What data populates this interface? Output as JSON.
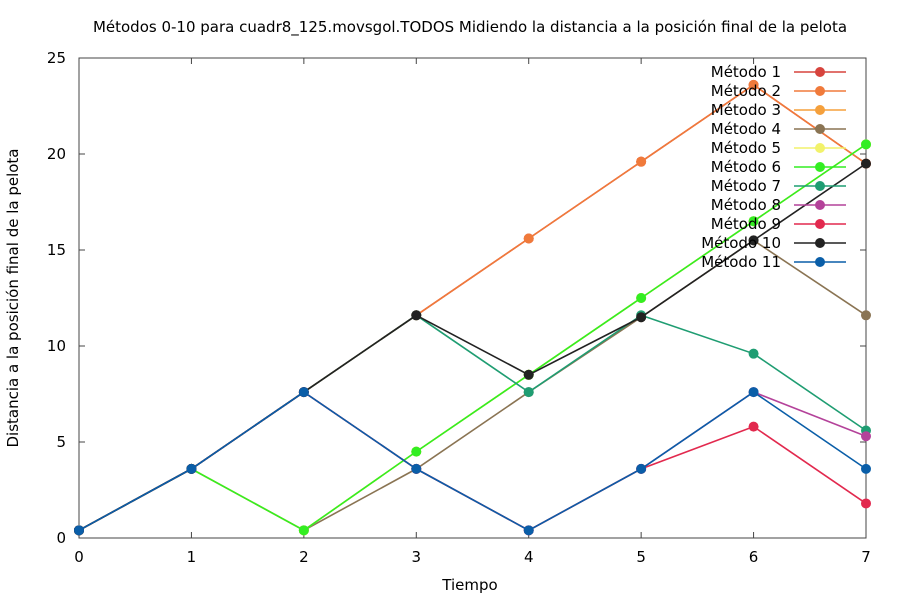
{
  "chart_data": {
    "type": "line",
    "title": "Métodos 0-10 para cuadr8_125.movsgol.TODOS Midiendo la distancia a la posición final de la pelota",
    "xlabel": "Tiempo",
    "ylabel": "Distancia a la posición final de la pelota",
    "xlim": [
      0,
      7
    ],
    "ylim": [
      0,
      25
    ],
    "xticks": [
      0,
      1,
      2,
      3,
      4,
      5,
      6,
      7
    ],
    "yticks": [
      0,
      5,
      10,
      15,
      20,
      25
    ],
    "grid": false,
    "legend_position": "top-right",
    "x": [
      0,
      1,
      2,
      3,
      4,
      5,
      6,
      7
    ],
    "series": [
      {
        "name": "Método 1",
        "color": "#d7443d",
        "values": [
          0.4,
          3.6,
          7.6,
          11.6,
          15.6,
          19.6,
          23.6,
          19.5
        ]
      },
      {
        "name": "Método 2",
        "color": "#f07a3b",
        "values": [
          0.4,
          3.6,
          7.6,
          11.6,
          15.6,
          19.6,
          23.6,
          19.5
        ]
      },
      {
        "name": "Método 3",
        "color": "#f5a03c",
        "values": [
          0.4,
          3.6,
          0.4,
          4.5,
          8.5,
          12.5,
          16.5,
          20.5
        ]
      },
      {
        "name": "Método 4",
        "color": "#8a7453",
        "values": [
          0.4,
          3.6,
          0.4,
          3.6,
          7.6,
          11.5,
          15.5,
          11.6
        ]
      },
      {
        "name": "Método 5",
        "color": "#f2f26b",
        "values": [
          0.4,
          3.6,
          0.4,
          4.5,
          8.5,
          12.5,
          16.5,
          20.5
        ]
      },
      {
        "name": "Método 6",
        "color": "#33ee22",
        "values": [
          0.4,
          3.6,
          0.4,
          4.5,
          8.5,
          12.5,
          16.5,
          20.5
        ]
      },
      {
        "name": "Método 7",
        "color": "#1f9d72",
        "values": [
          0.4,
          3.6,
          7.6,
          11.6,
          7.6,
          11.6,
          9.6,
          5.6
        ]
      },
      {
        "name": "Método 8",
        "color": "#b4429a",
        "values": [
          0.4,
          3.6,
          7.6,
          3.6,
          0.4,
          3.6,
          7.6,
          5.3
        ]
      },
      {
        "name": "Método 9",
        "color": "#e2294e",
        "values": [
          0.4,
          3.6,
          7.6,
          3.6,
          0.4,
          3.6,
          5.8,
          1.8
        ]
      },
      {
        "name": "Método 10",
        "color": "#222222",
        "values": [
          0.4,
          3.6,
          7.6,
          11.6,
          8.5,
          11.5,
          15.5,
          19.5
        ]
      },
      {
        "name": "Método 11",
        "color": "#0a5ea8",
        "values": [
          0.4,
          3.6,
          7.6,
          3.6,
          0.4,
          3.6,
          7.6,
          3.6
        ]
      }
    ]
  }
}
